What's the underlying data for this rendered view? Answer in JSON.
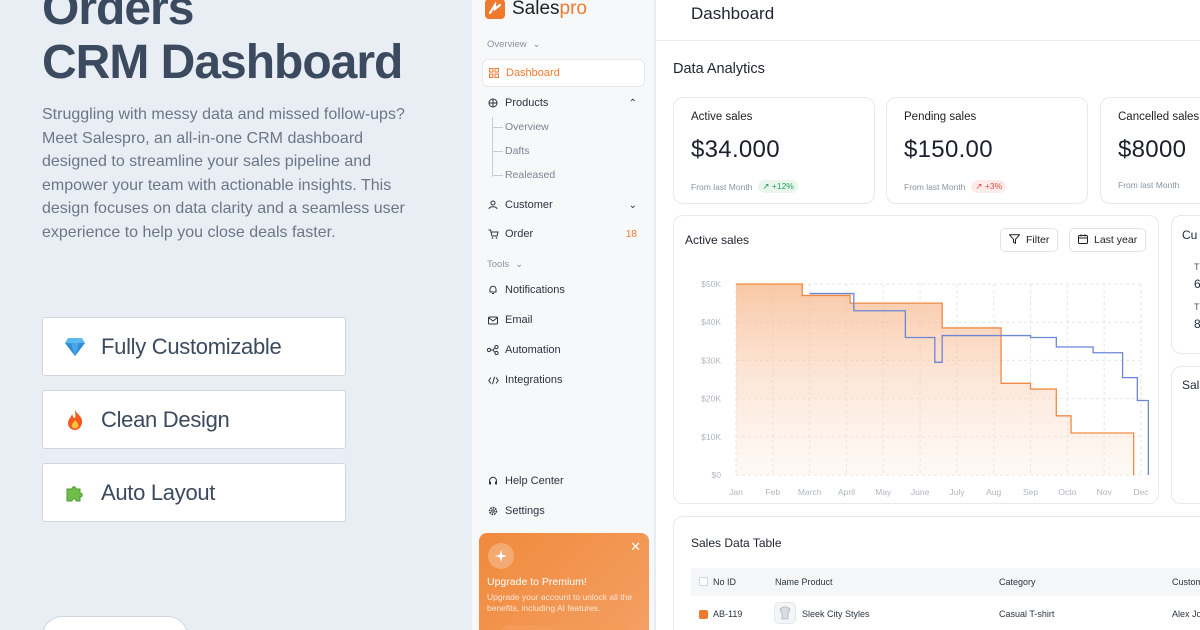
{
  "promo": {
    "title_line1": "Orders",
    "title_line2": "CRM Dashboard",
    "description": "Struggling with messy data and missed follow-ups? Meet Salespro, an all-in-one CRM dashboard designed to streamline your sales pipeline and empower your team with actionable insights. This design focuses on data clarity and a seamless user experience to help you close deals faster.",
    "features": [
      {
        "label": "Fully Customizable",
        "icon": "diamond-icon"
      },
      {
        "label": "Clean Design",
        "icon": "fire-icon"
      },
      {
        "label": "Auto Layout",
        "icon": "puzzle-icon"
      }
    ]
  },
  "sidebar": {
    "brand_a": "Sales",
    "brand_b": "pro",
    "overview_label": "Overview",
    "tools_label": "Tools",
    "items": {
      "dashboard": "Dashboard",
      "products": "Products",
      "customer": "Customer",
      "order": "Order",
      "order_badge": "18",
      "notifications": "Notifications",
      "email": "Email",
      "automation": "Automation",
      "integrations": "Integrations",
      "help": "Help Center",
      "settings": "Settings"
    },
    "products_sub": [
      "Overview",
      "Dafts",
      "Realeased"
    ],
    "upgrade": {
      "title": "Upgrade to Premium!",
      "desc": "Upgrade your account to unlock all the benefits, including AI features."
    }
  },
  "header": {
    "title": "Dashboard"
  },
  "analytics": {
    "title": "Data Analytics",
    "cards": [
      {
        "label": "Active sales",
        "value": "$34.000",
        "from": "From last Month",
        "change": "+12%",
        "trend": "up"
      },
      {
        "label": "Pending sales",
        "value": "$150.00",
        "from": "From last Month",
        "change": "+3%",
        "trend": "down"
      },
      {
        "label": "Cancelled sales",
        "value": "$8000",
        "from": "From last Month",
        "change": "",
        "trend": "up"
      }
    ]
  },
  "chart_card": {
    "title": "Active sales",
    "filter_label": "Filter",
    "range_label": "Last year"
  },
  "side_cards": {
    "top_label": "Cu",
    "row1_a": "T",
    "row1_b": "6",
    "row2_a": "T",
    "row2_b": "8",
    "bottom_label": "Sal"
  },
  "chart_data": {
    "type": "line",
    "title": "Active sales",
    "categories": [
      "Jan",
      "Feb",
      "March",
      "April",
      "May",
      "June",
      "July",
      "Aug",
      "Sep",
      "Octo",
      "Nov",
      "Dec"
    ],
    "y_ticks": [
      "$0",
      "$10K",
      "$20K",
      "$30K",
      "$40K",
      "$50K"
    ],
    "ylim": [
      0,
      50000
    ],
    "series": [
      {
        "name": "",
        "color": "#ef8a45",
        "points": [
          [
            0,
            50000
          ],
          [
            0.3,
            50000
          ],
          [
            1.8,
            50000
          ],
          [
            1.8,
            47000
          ],
          [
            3.1,
            47000
          ],
          [
            3.1,
            45000
          ],
          [
            5.6,
            45000
          ],
          [
            5.6,
            38500
          ],
          [
            7.2,
            38500
          ],
          [
            7.2,
            24000
          ],
          [
            8,
            24000
          ],
          [
            8,
            22500
          ],
          [
            8.7,
            22500
          ],
          [
            8.7,
            15500
          ],
          [
            9.1,
            15500
          ],
          [
            9.1,
            11000
          ],
          [
            10.8,
            11000
          ],
          [
            10.8,
            0
          ]
        ]
      },
      {
        "name": "",
        "color": "#6b86d6",
        "points": [
          [
            2,
            47500
          ],
          [
            3.2,
            47500
          ],
          [
            3.2,
            43000
          ],
          [
            4.6,
            43000
          ],
          [
            4.6,
            36000
          ],
          [
            5.4,
            36000
          ],
          [
            5.4,
            29500
          ],
          [
            5.6,
            29500
          ],
          [
            5.6,
            36500
          ],
          [
            8,
            36500
          ],
          [
            8,
            36000
          ],
          [
            8.7,
            36000
          ],
          [
            8.7,
            33500
          ],
          [
            9.7,
            33500
          ],
          [
            9.7,
            32000
          ],
          [
            10.5,
            32000
          ],
          [
            10.5,
            25500
          ],
          [
            10.9,
            25500
          ],
          [
            10.9,
            19500
          ],
          [
            11.2,
            19500
          ],
          [
            11.2,
            0
          ]
        ]
      }
    ]
  },
  "table": {
    "title": "Sales Data Table",
    "columns": [
      "No ID",
      "Name Product",
      "Category",
      "Custom"
    ],
    "rows": [
      {
        "id": "AB-119",
        "name": "Sleek City Styles",
        "category": "Casual T-shirt",
        "customer": "Alex Jo"
      }
    ]
  }
}
